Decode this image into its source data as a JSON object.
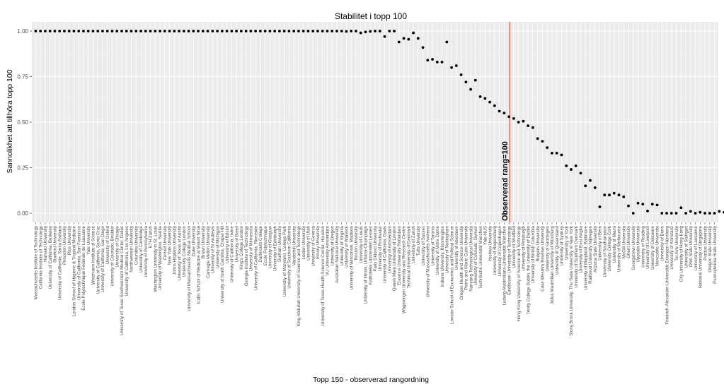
{
  "chart_data": {
    "type": "scatter",
    "title": "Stabilitet i topp 100",
    "xlabel": "Topp 150 - observerad rangordning",
    "ylabel": "Sannolikhet att tillhöra topp 100",
    "ylim": [
      0,
      1
    ],
    "yticks": [
      "0.00",
      "0.25",
      "0.50",
      "0.75",
      "1.00"
    ],
    "grid": true,
    "vline": {
      "x": 100,
      "color": "#e8402a",
      "label": "Observerad rang=100"
    },
    "xtick_labels": [
      "Massachusetts Institute of Technology",
      "California Institute of Technology",
      "Harvard University",
      "University of California, Berkeley",
      "Stanford University",
      "University of California, Santa Barbara",
      "Princeton University",
      "Rice University",
      "London School of Hygiene & Tropical Medicine",
      "University of California, San Francisco",
      "Ecole Polytechnique Fédérale de Lausanne",
      "Yale University",
      "Weizmann Institute of Science",
      "University of California, Santa Cruz",
      "University of California, San Diego",
      "University of Oxford",
      "University of Colorado, Boulder",
      "University of Chicago",
      "University of Texas Southwestern Medical Center, Dallas",
      "University of California, Los Angeles",
      "Northwestern University",
      "Columbia University",
      "University of Cambridge",
      "University of Pennsylvania",
      "ETH Zurich",
      "Washington University in St. Louis",
      "University of Washington, Seattle",
      "Cornell University",
      "New York University",
      "Johns Hopkins University",
      "University of Texas at Austin",
      "University College London",
      "University of Massachusetts Medical School",
      "Duke University",
      "Icahn School of Medicine at Mount Sinai",
      "Brown University",
      "Carnegie Mellon University",
      "University of St Andrews",
      "University of Michigan",
      "University of North Carolina, Chapel Hill",
      "University of Bristol",
      "University of California, Irvine",
      "University of Basel",
      "King's College London",
      "Georgia Institute of Technology",
      "University of Minnesota",
      "University of California, Riverside",
      "Dartmouth College",
      "Ecole Polytechnique",
      "University of Glasgow",
      "University of Edinburgh",
      "Durham University",
      "University of Maryland, College Park",
      "University of Southern California",
      "Vanderbilt University",
      "King Abdullah University of Science and Technology",
      "Leiden University",
      "University of Utah",
      "University of Geneva",
      "Emory University",
      "University of Texas Health Science Center, Houston",
      "VU University Amsterdam",
      "University of Oregon",
      "Australian National University",
      "University of Virginia",
      "University of Warwick",
      "University of Wisconsin, Madison",
      "Boston University",
      "University of Leeds",
      "University of Illinois, Urbana-Champaign",
      "Katholieke Universiteit Leuven",
      "Paris Diderot University",
      "University of Rochester",
      "University of California, Davis",
      "University of Amsterdam",
      "Queen Mary University of London",
      "Erasmus University Rotterdam",
      "Wageningen University and Research Centre",
      "Technical University of Denmark",
      "University of Zurich",
      "Tufts University",
      "University of Sussex",
      "University of Massachusetts Amherst",
      "University of Toronto",
      "University of Notre Dame",
      "Indiana University, Bloomington",
      "University of Nottingham",
      "London School of Economics and Political Science",
      "University of Aberdeen",
      "Oregon Health and Science University",
      "Pierre and Marie Curie University",
      "Nanyang Technological University",
      "University of Colorado, Denver",
      "Technische Universität München",
      "Yale-NUS",
      "Yeshiva University",
      "University of Regensburg",
      "University of Copenhagen",
      "Ludwig-Maximilians-Universität München",
      "Eindhoven University of Technology",
      "University of Sheffield",
      "Hong Kong University of Science and Technology",
      "University of Pittsburgh",
      "Trinity College Dublin, the University of Dublin",
      "University of British Columbia",
      "Rutgers University",
      "Case Western Reserve University",
      "University of Groningen",
      "Julius Maximilian University of Würzburg",
      "University of Queensland",
      "University of Sydney",
      "University of York",
      "Stony Brook University, The State University of New York",
      "University of Southern Denmark",
      "University of East Anglia",
      "University of Maryland, Baltimore",
      "Radboud University Nijmegen",
      "Arizona State University",
      "University of Bern",
      "University of Southampton",
      "University College Cork",
      "University of Miami",
      "University of Melbourne",
      "McGill University",
      "Ghent University",
      "Georgetown University",
      "Uppsala University",
      "University of Reading",
      "University of Liverpool",
      "University of Delaware",
      "Newcastle University",
      "University of Bonn",
      "Friedrich-Alexander-Universität Erlangen-Nürnberg",
      "University of Konstanz",
      "Tel Aviv University",
      "City University of Hong Kong",
      "University of Stuttgart",
      "Ohio State University",
      "University of Lausanne",
      "National University of Singapore",
      "Purdue University",
      "Oregon State University",
      "Pennsylvania State University"
    ],
    "y": [
      1.0,
      1.0,
      1.0,
      1.0,
      1.0,
      1.0,
      1.0,
      1.0,
      1.0,
      1.0,
      1.0,
      1.0,
      1.0,
      1.0,
      1.0,
      1.0,
      1.0,
      1.0,
      1.0,
      1.0,
      1.0,
      1.0,
      1.0,
      1.0,
      1.0,
      1.0,
      1.0,
      1.0,
      1.0,
      1.0,
      1.0,
      1.0,
      1.0,
      1.0,
      1.0,
      1.0,
      1.0,
      1.0,
      1.0,
      1.0,
      1.0,
      1.0,
      1.0,
      1.0,
      1.0,
      1.0,
      1.0,
      1.0,
      1.0,
      1.0,
      1.0,
      1.0,
      1.0,
      1.0,
      1.0,
      1.0,
      1.0,
      1.0,
      1.0,
      1.0,
      1.0,
      1.0,
      1.0,
      1.0,
      1.0,
      0.998,
      1.0,
      1.0,
      0.99,
      0.995,
      0.998,
      1.0,
      1.0,
      0.97,
      1.0,
      1.0,
      0.94,
      0.96,
      0.955,
      0.99,
      0.96,
      0.91,
      0.84,
      0.845,
      0.83,
      0.83,
      0.94,
      0.8,
      0.81,
      0.76,
      0.72,
      0.68,
      0.73,
      0.64,
      0.63,
      0.61,
      0.59,
      0.56,
      0.55,
      0.53,
      0.52,
      0.5,
      0.505,
      0.48,
      0.47,
      0.41,
      0.395,
      0.36,
      0.33,
      0.33,
      0.32,
      0.26,
      0.24,
      0.26,
      0.22,
      0.15,
      0.18,
      0.14,
      0.035,
      0.1,
      0.1,
      0.11,
      0.1,
      0.09,
      0.04,
      0.0,
      0.055,
      0.05,
      0.012,
      0.05,
      0.045,
      0.0,
      0.0,
      0.0,
      0.0,
      0.03,
      0.0,
      0.01,
      0.0,
      0.005,
      0.0,
      0.0,
      0.0,
      0.01,
      0.005,
      0.01,
      0.0,
      0.0,
      0.005,
      0.0
    ]
  }
}
